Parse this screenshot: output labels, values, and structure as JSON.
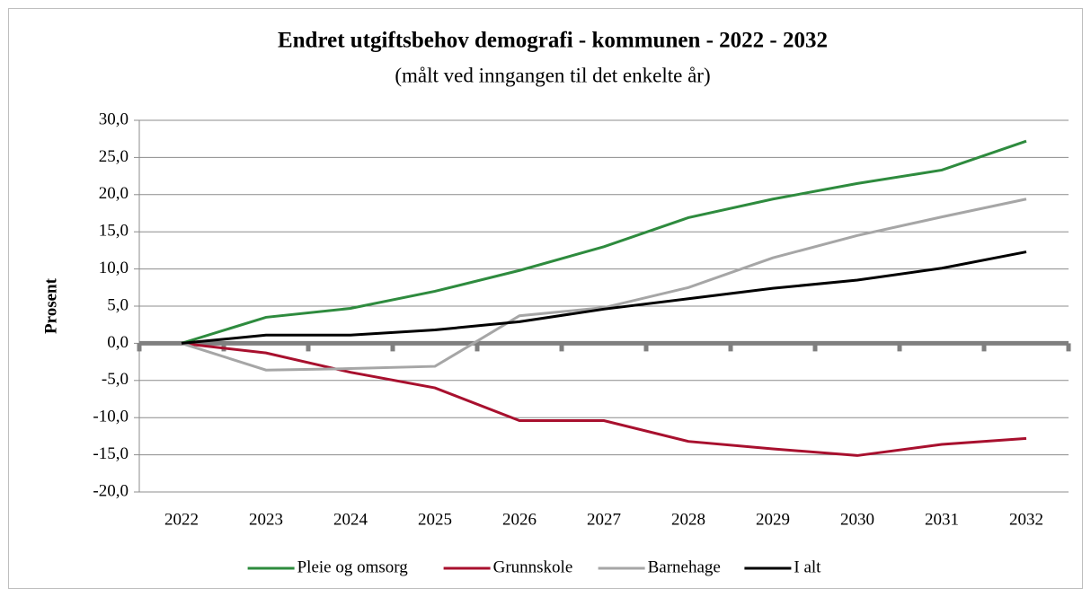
{
  "chart_data": {
    "type": "line",
    "title": "Endret utgiftsbehov demografi - kommunen - 2022 - 2032",
    "subtitle": "(målt ved inngangen til det enkelte år)",
    "y_label": "Prosent",
    "categories": [
      "2022",
      "2023",
      "2024",
      "2025",
      "2026",
      "2027",
      "2028",
      "2029",
      "2030",
      "2031",
      "2032"
    ],
    "series": [
      {
        "name": "Pleie og omsorg",
        "color": "#2e8b3e",
        "values": [
          0,
          3.5,
          4.7,
          7.0,
          9.8,
          13.0,
          16.9,
          19.4,
          21.5,
          23.3,
          27.2
        ]
      },
      {
        "name": "Grunnskole",
        "color": "#a8102e",
        "values": [
          0,
          -1.3,
          -3.9,
          -6.0,
          -10.4,
          -10.4,
          -13.2,
          -14.2,
          -15.1,
          -13.6,
          -12.8
        ]
      },
      {
        "name": "Barnehage",
        "color": "#a6a6a6",
        "values": [
          0,
          -3.6,
          -3.4,
          -3.1,
          3.7,
          4.8,
          7.5,
          11.5,
          14.5,
          17.0,
          19.4
        ]
      },
      {
        "name": "I alt",
        "color": "#000000",
        "values": [
          0,
          1.1,
          1.1,
          1.8,
          2.9,
          4.6,
          6.0,
          7.4,
          8.5,
          10.1,
          12.3
        ]
      }
    ],
    "ylim": [
      -20,
      30
    ],
    "yticks": [
      {
        "value": -20,
        "label": "-20,0"
      },
      {
        "value": -15,
        "label": "-15,0"
      },
      {
        "value": -10,
        "label": "-10,0"
      },
      {
        "value": -5,
        "label": "-5,0"
      },
      {
        "value": 0,
        "label": "0,0"
      },
      {
        "value": 5,
        "label": "5,0"
      },
      {
        "value": 10,
        "label": "10,0"
      },
      {
        "value": 15,
        "label": "15,0"
      },
      {
        "value": 20,
        "label": "20,0"
      },
      {
        "value": 25,
        "label": "25,0"
      },
      {
        "value": 30,
        "label": "30,0"
      }
    ],
    "grid": true,
    "legend": "bottom"
  }
}
